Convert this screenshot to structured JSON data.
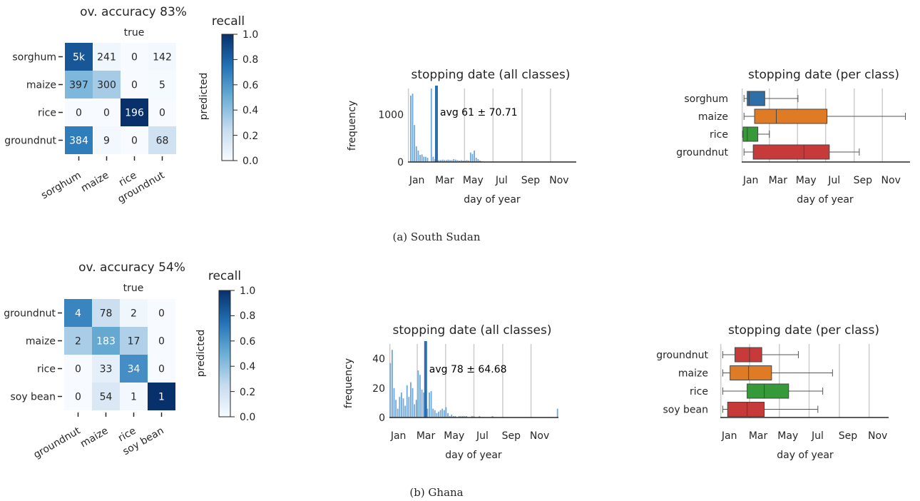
{
  "colorbar": {
    "label": "recall",
    "ticks": [
      "1.0",
      "0.8",
      "0.6",
      "0.4",
      "0.2",
      "0.0"
    ]
  },
  "colors": {
    "sorghum": "#2f6fa7",
    "maize": "#e07b25",
    "rice": "#379a3a",
    "groundnut": "#c63b3a",
    "soy bean": "#c63b3a",
    "hist": "#6fa8dc",
    "avg_line": "#2c6fb0"
  },
  "months": [
    "Jan",
    "Mar",
    "May",
    "Jul",
    "Sep",
    "Nov"
  ],
  "panels": [
    {
      "caption": "(a) South Sudan",
      "confusion": {
        "title": "ov. accuracy 83%",
        "xlabel": "true",
        "ylabel": "predicted",
        "classes": [
          "sorghum",
          "maize",
          "rice",
          "groundnut"
        ],
        "cells": [
          [
            "5k",
            "241",
            "0",
            "142"
          ],
          [
            "397",
            "300",
            "0",
            "5"
          ],
          [
            "0",
            "0",
            "196",
            "0"
          ],
          [
            "384",
            "9",
            "0",
            "68"
          ]
        ],
        "recall": [
          [
            0.85,
            0.04,
            0.0,
            0.02
          ],
          [
            0.45,
            0.34,
            0.0,
            0.01
          ],
          [
            0.0,
            0.0,
            1.0,
            0.0
          ],
          [
            0.7,
            0.02,
            0.0,
            0.2
          ]
        ]
      },
      "histogram": {
        "title": "stopping date (all classes)",
        "xlabel": "day of year",
        "ylabel": "frequency",
        "yticks": [
          0,
          1000
        ],
        "ymax": 1550,
        "avg_label": "avg 61 ± 70.71",
        "avg": 61,
        "bins": [
          1,
          5,
          9,
          13,
          17,
          21,
          25,
          29,
          33,
          37,
          41,
          45,
          49,
          53,
          57,
          61,
          65,
          69,
          73,
          77,
          81,
          85,
          89,
          93,
          97,
          101,
          105,
          109,
          113,
          117,
          121,
          125,
          129,
          133,
          137,
          141,
          145,
          149,
          153,
          157,
          161,
          165,
          169,
          173,
          177,
          181,
          185,
          189,
          193,
          197,
          201,
          205,
          209,
          213,
          217
        ],
        "counts": [
          0,
          1400,
          1440,
          780,
          330,
          240,
          150,
          160,
          110,
          110,
          90,
          0,
          1550,
          110,
          60,
          50,
          40,
          40,
          50,
          40,
          40,
          50,
          40,
          40,
          60,
          50,
          40,
          30,
          40,
          30,
          30,
          40,
          30,
          200,
          170,
          240,
          90,
          60,
          30,
          15,
          10,
          0,
          0,
          0,
          0,
          0,
          0,
          0,
          0,
          0,
          0,
          0,
          0,
          0,
          0
        ]
      },
      "boxplot": {
        "title": "stopping date (per class)",
        "xlabel": "day of year",
        "classes": [
          {
            "name": "sorghum",
            "whislo": 5,
            "q1": 12,
            "med": 16,
            "q3": 50,
            "whishi": 122
          },
          {
            "name": "maize",
            "whislo": 5,
            "q1": 28,
            "med": 75,
            "q3": 185,
            "whishi": 355
          },
          {
            "name": "rice",
            "whislo": 2,
            "q1": 3,
            "med": 12,
            "q3": 35,
            "whishi": 60
          },
          {
            "name": "groundnut",
            "whislo": 5,
            "q1": 25,
            "med": 135,
            "q3": 190,
            "whishi": 255
          }
        ]
      }
    },
    {
      "caption": "(b) Ghana",
      "confusion": {
        "title": "ov. accuracy 54%",
        "xlabel": "true",
        "ylabel": "predicted",
        "classes": [
          "groundnut",
          "maize",
          "rice",
          "soy bean"
        ],
        "cells": [
          [
            "4",
            "78",
            "2",
            "0"
          ],
          [
            "2",
            "183",
            "17",
            "0"
          ],
          [
            "0",
            "33",
            "34",
            "0"
          ],
          [
            "0",
            "54",
            "1",
            "1"
          ]
        ],
        "recall": [
          [
            0.67,
            0.22,
            0.04,
            0.0
          ],
          [
            0.33,
            0.52,
            0.31,
            0.0
          ],
          [
            0.0,
            0.09,
            0.63,
            0.0
          ],
          [
            0.0,
            0.15,
            0.02,
            1.0
          ]
        ]
      },
      "histogram": {
        "title": "stopping date (all classes)",
        "xlabel": "day of year",
        "ylabel": "frequency",
        "yticks": [
          0,
          20,
          40
        ],
        "ymax": 50,
        "avg_label": "avg 78 ± 64.68",
        "avg": 78,
        "bins": [
          1,
          5,
          9,
          13,
          17,
          21,
          25,
          29,
          33,
          37,
          41,
          45,
          49,
          53,
          57,
          61,
          65,
          69,
          73,
          77,
          81,
          85,
          89,
          93,
          97,
          101,
          105,
          109,
          113,
          117,
          121,
          125,
          129,
          133,
          137,
          141,
          145,
          149,
          153,
          157,
          161,
          165,
          169,
          173,
          177,
          181,
          185,
          189,
          193,
          197,
          201,
          205,
          209,
          213,
          217,
          221,
          225,
          229,
          233,
          237,
          241,
          245,
          249,
          253,
          257,
          261,
          265,
          269,
          273,
          277,
          281,
          285,
          289,
          293,
          297,
          301,
          305,
          309,
          313,
          317,
          321,
          325,
          329,
          333,
          337,
          341,
          345,
          349,
          353,
          357,
          361
        ],
        "counts": [
          37,
          46,
          20,
          12,
          6,
          14,
          17,
          13,
          8,
          22,
          14,
          24,
          20,
          9,
          12,
          32,
          29,
          19,
          17,
          12,
          6,
          17,
          18,
          6,
          5,
          3,
          4,
          5,
          6,
          5,
          7,
          3,
          1,
          2,
          1,
          1,
          0,
          1,
          1,
          1,
          1,
          1,
          0,
          0,
          1,
          1,
          0,
          0,
          1,
          0,
          0,
          0,
          0,
          0,
          0,
          1,
          0,
          0,
          0,
          0,
          0,
          0,
          0,
          0,
          0,
          0,
          0,
          0,
          0,
          0,
          0,
          0,
          0,
          0,
          0,
          0,
          0,
          0,
          0,
          0,
          0,
          0,
          0,
          0,
          0,
          0,
          0,
          0,
          0,
          0,
          6
        ]
      },
      "boxplot": {
        "title": "stopping date (per class)",
        "xlabel": "day of year",
        "classes": [
          {
            "name": "groundnut",
            "whislo": 5,
            "q1": 30,
            "med": 60,
            "q3": 85,
            "whishi": 160
          },
          {
            "name": "maize",
            "whislo": 5,
            "q1": 20,
            "med": 58,
            "q3": 105,
            "whishi": 230
          },
          {
            "name": "rice",
            "whislo": 5,
            "q1": 55,
            "med": 90,
            "q3": 140,
            "whishi": 210
          },
          {
            "name": "soy bean",
            "whislo": 5,
            "q1": 15,
            "med": 55,
            "q3": 90,
            "whishi": 200
          }
        ]
      }
    }
  ]
}
